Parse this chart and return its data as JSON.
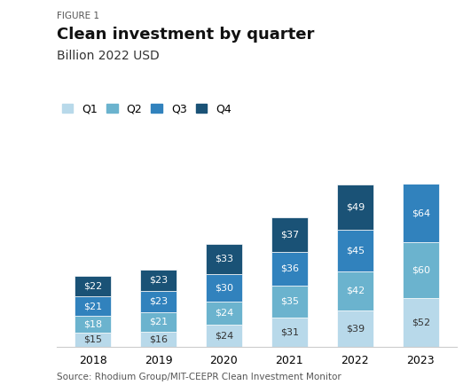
{
  "figure_label": "FIGURE 1",
  "title": "Clean investment by quarter",
  "subtitle": "Billion 2022 USD",
  "source": "Source: Rhodium Group/MIT-CEEPR Clean Investment Monitor",
  "years": [
    "2018",
    "2019",
    "2020",
    "2021",
    "2022",
    "2023"
  ],
  "quarters": [
    "Q1",
    "Q2",
    "Q3",
    "Q4"
  ],
  "values": {
    "Q1": [
      15,
      16,
      24,
      31,
      39,
      52
    ],
    "Q2": [
      18,
      21,
      24,
      35,
      42,
      60
    ],
    "Q3": [
      21,
      23,
      30,
      36,
      45,
      64
    ],
    "Q4": [
      22,
      23,
      33,
      37,
      49,
      0
    ]
  },
  "colors": {
    "Q1": "#b8d9ea",
    "Q2": "#6bb3ce",
    "Q3": "#3182bd",
    "Q4": "#1a5276"
  },
  "label_colors": {
    "Q1": "#333333",
    "Q2": "#ffffff",
    "Q3": "#ffffff",
    "Q4": "#ffffff"
  },
  "bar_width": 0.55,
  "background_color": "#ffffff",
  "ylim": [
    0,
    220
  ],
  "title_fontsize": 13,
  "subtitle_fontsize": 10,
  "label_fontsize": 8,
  "legend_fontsize": 9,
  "axis_fontsize": 9,
  "source_fontsize": 7.5
}
